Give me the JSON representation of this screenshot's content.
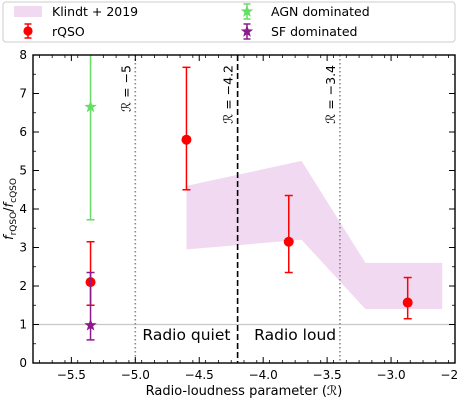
{
  "chart_data": {
    "type": "scatter",
    "xlabel": "Radio-loudness parameter (ℛ)",
    "ylabel": "f_rQSO / f_cQSO",
    "ylabel_parts": {
      "f1": "f",
      "s1": "rQSO",
      "sep": "/",
      "f2": "f",
      "s2": "cQSO"
    },
    "xlim": [
      -5.8,
      -2.5
    ],
    "ylim": [
      0,
      8
    ],
    "xticks": [
      -5.5,
      -5.0,
      -4.5,
      -4.0,
      -3.5,
      -3.0,
      -2.5
    ],
    "xtick_labels": [
      "−5.5",
      "−5.0",
      "−4.5",
      "−4.0",
      "−3.5",
      "−3.0",
      "−2.5"
    ],
    "yticks": [
      0,
      1,
      2,
      3,
      4,
      5,
      6,
      7,
      8
    ],
    "ytick_labels": [
      "0",
      "1",
      "2",
      "3",
      "4",
      "5",
      "6",
      "7",
      "8"
    ],
    "reference_line_y": 1,
    "vlines": [
      {
        "x": -5.0,
        "style": "dotted",
        "label": "ℛ = −5"
      },
      {
        "x": -4.2,
        "style": "dashed",
        "label": "ℛ = −4.2"
      },
      {
        "x": -3.4,
        "style": "dotted",
        "label": "ℛ = −3.4"
      }
    ],
    "region_labels": [
      {
        "text": "Radio quiet",
        "x": -4.6,
        "y": 0.6
      },
      {
        "text": "Radio loud",
        "x": -3.75,
        "y": 0.6
      }
    ],
    "band": {
      "name": "Klindt + 2019",
      "color": "#f2d9f2",
      "x": [
        -4.6,
        -3.7,
        -3.2,
        -2.6
      ],
      "lower": [
        2.95,
        3.2,
        1.4,
        1.4
      ],
      "upper": [
        4.6,
        5.25,
        2.6,
        2.6
      ]
    },
    "series": [
      {
        "name": "rQSO",
        "marker": "circle",
        "color": "#ff0000",
        "points": [
          {
            "x": -5.35,
            "y": 2.1,
            "lo": 1.5,
            "hi": 3.15
          },
          {
            "x": -4.6,
            "y": 5.8,
            "lo": 4.5,
            "hi": 7.68
          },
          {
            "x": -3.8,
            "y": 3.15,
            "lo": 2.35,
            "hi": 4.35
          },
          {
            "x": -2.87,
            "y": 1.57,
            "lo": 1.15,
            "hi": 2.22
          }
        ]
      },
      {
        "name": "AGN dominated",
        "marker": "star",
        "color": "#66dd66",
        "points": [
          {
            "x": -5.35,
            "y": 6.65,
            "lo": 3.72,
            "hi": 8.0
          }
        ]
      },
      {
        "name": "SF dominated",
        "marker": "star",
        "color": "#8b1a8b",
        "points": [
          {
            "x": -5.35,
            "y": 0.98,
            "lo": 0.6,
            "hi": 2.35
          }
        ]
      }
    ],
    "legend": {
      "placement": "top",
      "entries": [
        "Klindt + 2019",
        "AGN dominated",
        "rQSO",
        "SF dominated"
      ]
    }
  }
}
